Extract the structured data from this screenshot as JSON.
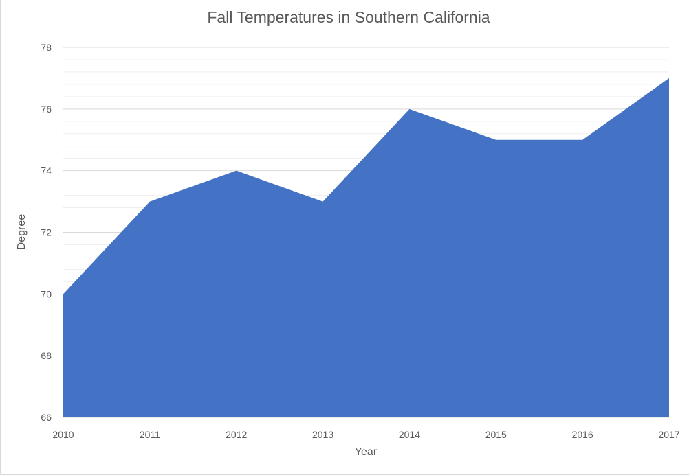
{
  "chart_data": {
    "type": "area",
    "title": "Fall Temperatures in Southern California",
    "xlabel": "Year",
    "ylabel": "Degree",
    "categories": [
      "2010",
      "2011",
      "2012",
      "2013",
      "2014",
      "2015",
      "2016",
      "2017"
    ],
    "values": [
      70,
      73,
      74,
      73,
      76,
      75,
      75,
      77
    ],
    "ylim": [
      66,
      78
    ],
    "y_ticks": [
      66,
      68,
      70,
      72,
      74,
      76,
      78
    ],
    "grid": true,
    "legend": "none",
    "fill_color": "#4472C4"
  }
}
